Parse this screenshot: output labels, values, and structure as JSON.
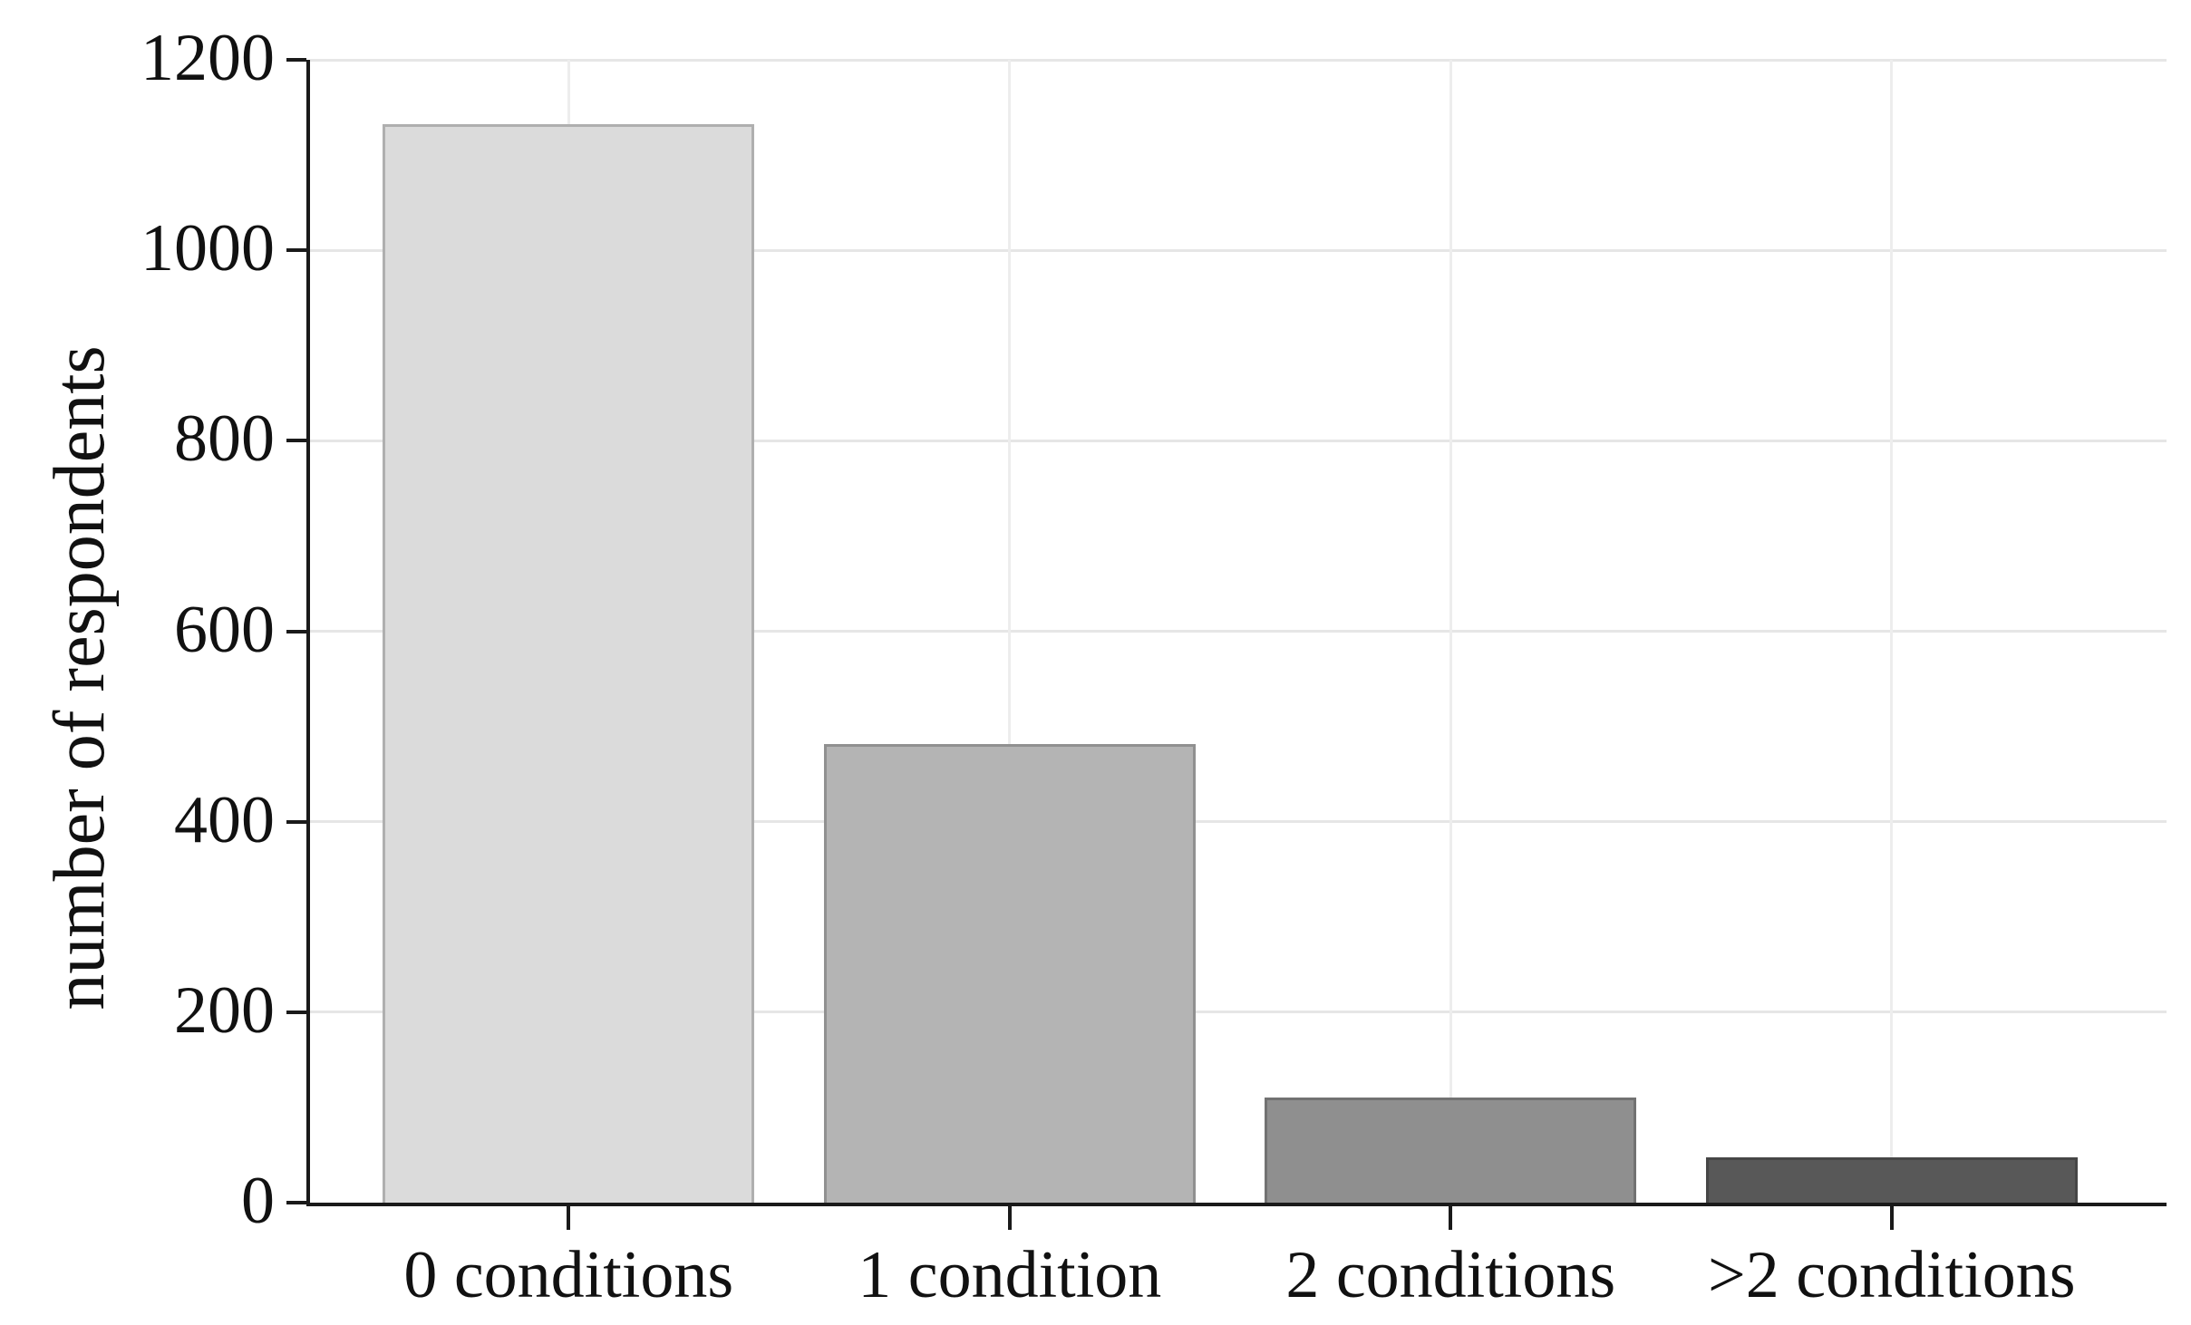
{
  "chart_data": {
    "type": "bar",
    "title": "",
    "categories": [
      "0 conditions",
      "1 condition",
      "2 conditions",
      ">2 conditions"
    ],
    "values": [
      1132,
      482,
      110,
      48
    ],
    "xlabel": "",
    "ylabel": "number of respondents",
    "ylim": [
      0,
      1200
    ],
    "yticks": [
      0,
      200,
      400,
      600,
      800,
      1000,
      1200
    ],
    "bar_colors": [
      "#dbdbdb",
      "#b4b4b4",
      "#8f8f8f",
      "#585858"
    ],
    "grid": "faint horizontal gridlines at each y tick and faint vertical gridlines at category centers",
    "legend_position": "none"
  },
  "style": {
    "background": "#ffffff",
    "axis_color": "#1a1a1a",
    "text_color": "#111111",
    "h_grid_color": "#e6e6e6",
    "v_grid_color": "#ededed",
    "bar_outline": "rgba(0,0,0,0.20)"
  }
}
